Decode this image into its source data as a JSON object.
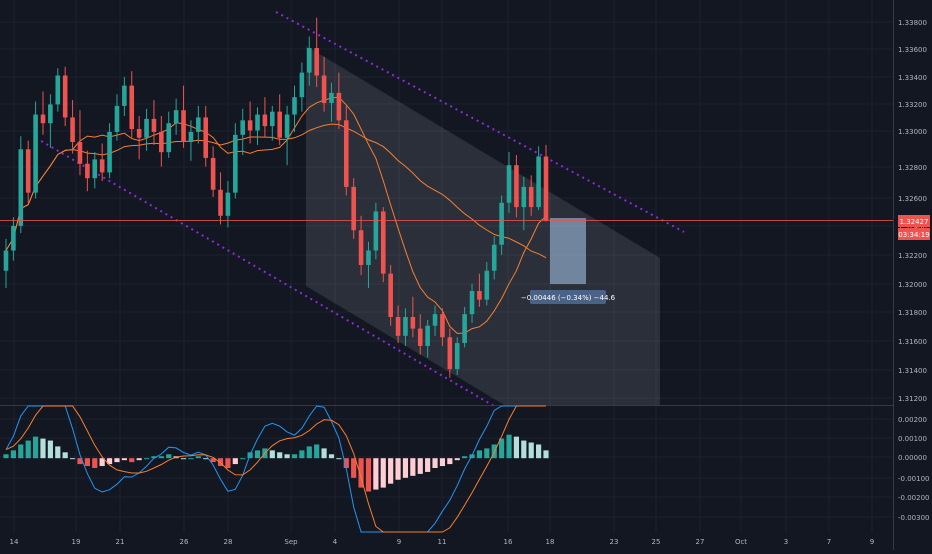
{
  "colors": {
    "background": "#131722",
    "grid": "#1e222d",
    "axis_text": "#b2b5be",
    "up": "#26a69a",
    "down": "#ef5350",
    "ma_fast": "#f57f30",
    "ma_slow": "#f57f30",
    "channel_line": "#8c2bd9",
    "channel_fill": "#868993",
    "measure_box": "#8aa4c0",
    "macd_line": "#2196f3",
    "signal_line": "#f57f30",
    "price_label": "#ef5350"
  },
  "price_labels": {
    "last": "1.32427",
    "countdown": "03:34:19",
    "measure": "−0.00446 (−0.34%) −44.6"
  },
  "chart_data": [
    {
      "type": "candlestick",
      "x_axis": {
        "tick_labels": [
          "14",
          "19",
          "21",
          "26",
          "28",
          "Sep",
          "4",
          "9",
          "11",
          "16",
          "18",
          "23",
          "25",
          "27",
          "Oct",
          "3",
          "7",
          "9"
        ]
      },
      "y_axis": {
        "tick_labels": [
          "1.33800",
          "1.33600",
          "1.33400",
          "1.33200",
          "1.33000",
          "1.32800",
          "1.32600",
          "1.32400",
          "1.32200",
          "1.32000",
          "1.31800",
          "1.31600",
          "1.31400",
          "1.31200"
        ],
        "ylim": [
          1.3108,
          1.3393
        ]
      },
      "grid": true,
      "last_price": 1.32427,
      "candles_ohlc": [
        [
          1.3208,
          1.323,
          1.3196,
          1.3222
        ],
        [
          1.3222,
          1.3245,
          1.3215,
          1.3239
        ],
        [
          1.3239,
          1.3301,
          1.3234,
          1.3292
        ],
        [
          1.3292,
          1.3298,
          1.3255,
          1.3262
        ],
        [
          1.3262,
          1.3325,
          1.3258,
          1.3316
        ],
        [
          1.3316,
          1.3332,
          1.3302,
          1.331
        ],
        [
          1.331,
          1.333,
          1.3293,
          1.3323
        ],
        [
          1.3323,
          1.3348,
          1.3318,
          1.3343
        ],
        [
          1.3343,
          1.3349,
          1.3308,
          1.3314
        ],
        [
          1.3314,
          1.3326,
          1.3289,
          1.3297
        ],
        [
          1.3297,
          1.3319,
          1.3274,
          1.3282
        ],
        [
          1.3282,
          1.3291,
          1.3263,
          1.3272
        ],
        [
          1.3272,
          1.329,
          1.3265,
          1.3285
        ],
        [
          1.3285,
          1.3296,
          1.327,
          1.3276
        ],
        [
          1.3276,
          1.331,
          1.3272,
          1.3304
        ],
        [
          1.3304,
          1.333,
          1.3298,
          1.3322
        ],
        [
          1.3322,
          1.3342,
          1.3315,
          1.3336
        ],
        [
          1.3336,
          1.3346,
          1.33,
          1.3306
        ],
        [
          1.3306,
          1.3315,
          1.3285,
          1.33
        ],
        [
          1.33,
          1.332,
          1.3291,
          1.3313
        ],
        [
          1.3313,
          1.3326,
          1.3295,
          1.3304
        ],
        [
          1.3304,
          1.3315,
          1.328,
          1.329
        ],
        [
          1.329,
          1.3318,
          1.3286,
          1.331
        ],
        [
          1.331,
          1.3327,
          1.3302,
          1.3319
        ],
        [
          1.3319,
          1.3336,
          1.3293,
          1.3297
        ],
        [
          1.3297,
          1.3312,
          1.3284,
          1.3304
        ],
        [
          1.3304,
          1.3322,
          1.3296,
          1.3314
        ],
        [
          1.3314,
          1.3322,
          1.328,
          1.3286
        ],
        [
          1.3286,
          1.3294,
          1.3259,
          1.3264
        ],
        [
          1.3264,
          1.3276,
          1.324,
          1.3246
        ],
        [
          1.3246,
          1.327,
          1.3238,
          1.3262
        ],
        [
          1.3262,
          1.331,
          1.3258,
          1.3302
        ],
        [
          1.3302,
          1.332,
          1.3288,
          1.3312
        ],
        [
          1.3312,
          1.3325,
          1.3296,
          1.3305
        ],
        [
          1.3305,
          1.3321,
          1.3295,
          1.3316
        ],
        [
          1.3316,
          1.3328,
          1.33,
          1.3308
        ],
        [
          1.3308,
          1.3322,
          1.3298,
          1.3318
        ],
        [
          1.3318,
          1.333,
          1.3295,
          1.33
        ],
        [
          1.33,
          1.3322,
          1.3281,
          1.3316
        ],
        [
          1.3316,
          1.3336,
          1.3304,
          1.3328
        ],
        [
          1.3328,
          1.3352,
          1.3318,
          1.3345
        ],
        [
          1.3345,
          1.337,
          1.3336,
          1.3362
        ],
        [
          1.3362,
          1.3383,
          1.3335,
          1.3343
        ],
        [
          1.3343,
          1.3356,
          1.3318,
          1.3324
        ],
        [
          1.3324,
          1.3338,
          1.3311,
          1.3331
        ],
        [
          1.3331,
          1.3345,
          1.3306,
          1.3312
        ],
        [
          1.3312,
          1.3322,
          1.326,
          1.3266
        ],
        [
          1.3266,
          1.3272,
          1.323,
          1.3236
        ],
        [
          1.3236,
          1.3246,
          1.3205,
          1.3212
        ],
        [
          1.3212,
          1.3228,
          1.3196,
          1.3222
        ],
        [
          1.3222,
          1.3255,
          1.3216,
          1.3249
        ],
        [
          1.3249,
          1.3252,
          1.32,
          1.3206
        ],
        [
          1.3206,
          1.3212,
          1.317,
          1.3176
        ],
        [
          1.3176,
          1.3184,
          1.3158,
          1.3163
        ],
        [
          1.3163,
          1.3182,
          1.3156,
          1.3176
        ],
        [
          1.3176,
          1.319,
          1.3162,
          1.3168
        ],
        [
          1.3168,
          1.3178,
          1.315,
          1.3156
        ],
        [
          1.3156,
          1.3174,
          1.3148,
          1.317
        ],
        [
          1.317,
          1.3184,
          1.3163,
          1.3178
        ],
        [
          1.3178,
          1.3182,
          1.3156,
          1.3162
        ],
        [
          1.3162,
          1.3168,
          1.3134,
          1.314
        ],
        [
          1.314,
          1.3162,
          1.3136,
          1.3158
        ],
        [
          1.3158,
          1.3183,
          1.3155,
          1.3178
        ],
        [
          1.3178,
          1.3199,
          1.3172,
          1.3194
        ],
        [
          1.3194,
          1.3206,
          1.3183,
          1.3188
        ],
        [
          1.3188,
          1.3214,
          1.3184,
          1.3208
        ],
        [
          1.3208,
          1.3232,
          1.3202,
          1.3226
        ],
        [
          1.3226,
          1.326,
          1.3219,
          1.3255
        ],
        [
          1.3255,
          1.329,
          1.3248,
          1.3281
        ],
        [
          1.3281,
          1.3288,
          1.3245,
          1.3252
        ],
        [
          1.3252,
          1.3273,
          1.3236,
          1.3266
        ],
        [
          1.3266,
          1.3274,
          1.3246,
          1.3252
        ],
        [
          1.3252,
          1.3294,
          1.325,
          1.3287
        ],
        [
          1.3287,
          1.3295,
          1.3242,
          1.3243
        ]
      ],
      "ma_fast_note": "",
      "ma_slow_note": ""
    },
    {
      "type": "macd",
      "y_axis": {
        "tick_labels": [
          "0.00200",
          "0.00100",
          "0.00000",
          "-0.00100",
          "-0.00200",
          "-0.00300"
        ],
        "ylim": [
          -0.0035,
          0.0024
        ]
      },
      "histogram": [
        0.0002,
        0.0004,
        0.0007,
        0.0009,
        0.0011,
        0.001,
        0.0009,
        0.0006,
        0.0003,
        0.0,
        -0.0003,
        -0.0004,
        -0.0005,
        -0.0004,
        -0.0003,
        -0.0002,
        -0.0001,
        -0.0002,
        -0.0001,
        0.0,
        0.0001,
        0.0001,
        0.0002,
        0.0001,
        0.0,
        0.0,
        0.0001,
        0.0,
        -0.0002,
        -0.0004,
        -0.0005,
        -0.0003,
        0.0,
        0.0003,
        0.0004,
        0.0005,
        0.0004,
        0.0003,
        0.0002,
        0.0002,
        0.0004,
        0.0006,
        0.0007,
        0.0005,
        0.0002,
        0.0,
        -0.0005,
        -0.001,
        -0.0015,
        -0.0017,
        -0.0016,
        -0.0015,
        -0.0013,
        -0.0011,
        -0.001,
        -0.0009,
        -0.0008,
        -0.0007,
        -0.0005,
        -0.0004,
        -0.0003,
        -0.0001,
        0.0001,
        0.0002,
        0.0004,
        0.0005,
        0.0007,
        0.001,
        0.0012,
        0.0011,
        0.0009,
        0.0008,
        0.0007,
        0.0004
      ]
    }
  ]
}
